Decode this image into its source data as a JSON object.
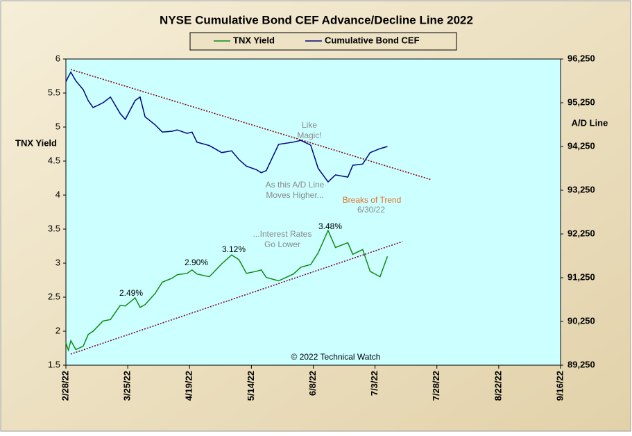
{
  "chart_data": {
    "type": "line",
    "title": "NYSE Cumulative  Bond CEF Advance/Decline  Line 2022",
    "y_label": "TNX  Yield",
    "y2_label": "A/D Line",
    "x": [
      "2/28/22",
      "3/1/22",
      "3/2/22",
      "3/4/22",
      "3/7/22",
      "3/9/22",
      "3/11/22",
      "3/15/22",
      "3/18/22",
      "3/22/22",
      "3/24/22",
      "3/28/22",
      "3/30/22",
      "4/1/22",
      "4/5/22",
      "4/8/22",
      "4/12/22",
      "4/14/22",
      "4/18/22",
      "4/20/22",
      "4/22/22",
      "4/27/22",
      "5/2/22",
      "5/6/22",
      "5/9/22",
      "5/12/22",
      "5/16/22",
      "5/18/22",
      "5/20/22",
      "5/25/22",
      "5/31/22",
      "6/3/22",
      "6/7/22",
      "6/10/22",
      "6/14/22",
      "6/17/22",
      "6/22/22",
      "6/24/22",
      "6/28/22",
      "7/1/22",
      "7/5/22",
      "7/8/22"
    ],
    "series": [
      {
        "name": "TNX Yield",
        "color": "#108a10",
        "axis": "y",
        "values": [
          1.83,
          1.72,
          1.86,
          1.73,
          1.78,
          1.95,
          2.0,
          2.15,
          2.17,
          2.38,
          2.37,
          2.49,
          2.35,
          2.39,
          2.55,
          2.72,
          2.78,
          2.83,
          2.85,
          2.9,
          2.84,
          2.8,
          2.99,
          3.12,
          3.05,
          2.85,
          2.88,
          2.9,
          2.79,
          2.74,
          2.84,
          2.94,
          2.98,
          3.15,
          3.48,
          3.23,
          3.3,
          3.13,
          3.2,
          2.88,
          2.8,
          3.1
        ]
      },
      {
        "name": "Cumulative Bond CEF",
        "color": "#000080",
        "axis": "y2",
        "values": [
          95730,
          95850,
          95950,
          95750,
          95550,
          95300,
          95140,
          95250,
          95380,
          95000,
          94870,
          95300,
          95380,
          94930,
          94750,
          94580,
          94600,
          94630,
          94550,
          94580,
          94350,
          94270,
          94110,
          94150,
          93950,
          93800,
          93720,
          93650,
          93700,
          94300,
          94350,
          94390,
          94280,
          93750,
          93440,
          93600,
          93550,
          93820,
          93850,
          94110,
          94200,
          94250
        ]
      }
    ],
    "xlim": [
      "2/28/22",
      "9/16/22"
    ],
    "xticks": [
      "2/28/22",
      "3/25/22",
      "4/19/22",
      "5/14/22",
      "6/8/22",
      "7/3/22",
      "7/28/22",
      "8/22/22",
      "9/16/22"
    ],
    "ylim": [
      1.5,
      6
    ],
    "yticks": [
      1.5,
      2,
      2.5,
      3,
      3.5,
      4,
      4.5,
      5,
      5.5,
      6
    ],
    "y2lim": [
      89250,
      96250
    ],
    "y2ticks": [
      {
        "value": 89250,
        "label": "89,250"
      },
      {
        "value": 90250,
        "label": "90,250"
      },
      {
        "value": 91250,
        "label": "91,250"
      },
      {
        "value": 92250,
        "label": "92,250"
      },
      {
        "value": 93250,
        "label": "93,250"
      },
      {
        "value": 94250,
        "label": "94,250"
      },
      {
        "value": 95250,
        "label": "95,250"
      },
      {
        "value": 96250,
        "label": "96,250"
      }
    ],
    "legend": "top",
    "annotations": [
      {
        "lines": [
          "Like",
          "Magic!"
        ],
        "color": "#8a8a8a"
      },
      {
        "lines": [
          "As this A/D Line",
          "Moves  Higher..."
        ],
        "color": "#8a8a8a"
      },
      {
        "lines": [
          "Breaks of Trend"
        ],
        "color": "#e07020"
      },
      {
        "lines": [
          "6/30/22"
        ],
        "color": "#8a8a8a"
      },
      {
        "lines": [
          "...Interest Rates",
          "Go Lower"
        ],
        "color": "#8a8a8a"
      },
      {
        "lines": [
          "2.49%"
        ],
        "color": "#000000"
      },
      {
        "lines": [
          "2.90%"
        ],
        "color": "#000000"
      },
      {
        "lines": [
          "3.12%"
        ],
        "color": "#000000"
      },
      {
        "lines": [
          "3.48%"
        ],
        "color": "#000000"
      },
      {
        "lines": [
          "© 2022 Technical  Watch"
        ],
        "color": "#000000"
      }
    ]
  }
}
